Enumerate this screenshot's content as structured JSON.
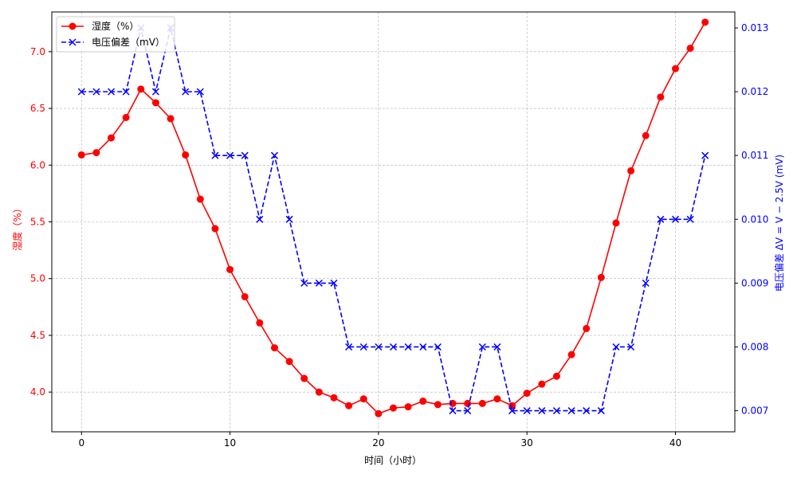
{
  "chart_data": {
    "type": "line",
    "xlabel": "时间（小时）",
    "ylabel_left": "湿度（%）",
    "ylabel_right": "电压偏差 ΔV = V − 2.5V (mV)",
    "xlim": [
      -2,
      44
    ],
    "ylim_left": [
      3.65,
      7.35
    ],
    "ylim_right": [
      0.00667,
      0.01325
    ],
    "x_ticks": [
      0,
      10,
      20,
      30,
      40
    ],
    "y_left_ticks": [
      4.0,
      4.5,
      5.0,
      5.5,
      6.0,
      6.5,
      7.0
    ],
    "y_right_ticks": [
      0.007,
      0.008,
      0.009,
      0.01,
      0.011,
      0.012,
      0.013
    ],
    "grid": true,
    "legend_position": "upper-left",
    "colors": {
      "left_axis": "#ff0000",
      "right_axis": "#0000ff",
      "humidity": "#ff0000",
      "voltage": "#0000ff"
    },
    "series": [
      {
        "name": "湿度（%）",
        "axis": "left",
        "style": "solid-circle",
        "x": [
          0,
          1,
          2,
          3,
          4,
          5,
          6,
          7,
          8,
          9,
          10,
          11,
          12,
          13,
          14,
          15,
          16,
          17,
          18,
          19,
          20,
          21,
          22,
          23,
          24,
          25,
          26,
          27,
          28,
          29,
          30,
          31,
          32,
          33,
          34,
          35,
          36,
          37,
          38,
          39,
          40,
          41,
          42
        ],
        "values": [
          6.09,
          6.11,
          6.24,
          6.42,
          6.67,
          6.55,
          6.41,
          6.09,
          5.7,
          5.44,
          5.08,
          4.84,
          4.61,
          4.39,
          4.27,
          4.12,
          4.0,
          3.95,
          3.88,
          3.94,
          3.81,
          3.86,
          3.87,
          3.92,
          3.89,
          3.9,
          3.9,
          3.9,
          3.94,
          3.88,
          3.99,
          4.07,
          4.14,
          4.33,
          4.56,
          5.01,
          5.49,
          5.95,
          6.26,
          6.6,
          6.85,
          7.03,
          7.26
        ]
      },
      {
        "name": "电压偏差（mV）",
        "axis": "right",
        "style": "dashed-x",
        "x": [
          0,
          1,
          2,
          3,
          4,
          5,
          6,
          7,
          8,
          9,
          10,
          11,
          12,
          13,
          14,
          15,
          16,
          17,
          18,
          19,
          20,
          21,
          22,
          23,
          24,
          25,
          26,
          27,
          28,
          29,
          30,
          31,
          32,
          33,
          34,
          35,
          36,
          37,
          38,
          39,
          40,
          41,
          42
        ],
        "values": [
          0.012,
          0.012,
          0.012,
          0.012,
          0.013,
          0.012,
          0.013,
          0.012,
          0.012,
          0.011,
          0.011,
          0.011,
          0.01,
          0.011,
          0.01,
          0.009,
          0.009,
          0.009,
          0.008,
          0.008,
          0.008,
          0.008,
          0.008,
          0.008,
          0.008,
          0.007,
          0.007,
          0.008,
          0.008,
          0.007,
          0.007,
          0.007,
          0.007,
          0.007,
          0.007,
          0.007,
          0.008,
          0.008,
          0.009,
          0.01,
          0.01,
          0.01,
          0.011
        ]
      }
    ]
  }
}
